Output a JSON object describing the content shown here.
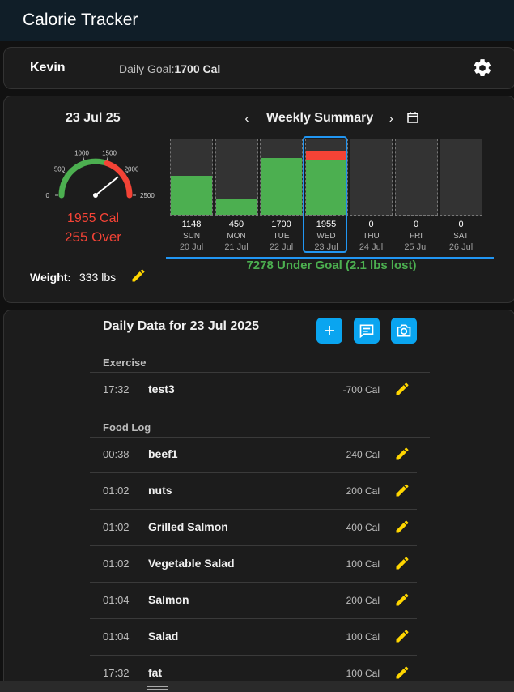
{
  "app": {
    "title": "Calorie Tracker"
  },
  "user": {
    "name": "Kevin",
    "goal_label": "Daily Goal:",
    "goal_value": "1700 Cal"
  },
  "summary": {
    "date": "23 Jul 25",
    "gauge": {
      "ticks": [
        "0",
        "500",
        "1000",
        "1500",
        "2000",
        "2500"
      ],
      "value": 1955,
      "max": 2500
    },
    "calories": "1955 Cal",
    "over": "255 Over",
    "weight_label": "Weight:",
    "weight_value": "333 lbs"
  },
  "week": {
    "title": "Weekly Summary",
    "prev": "‹",
    "next": "›",
    "goal": 1700,
    "days": [
      {
        "value": "1148",
        "name": "SUN",
        "date": "20 Jul",
        "cal": 1148
      },
      {
        "value": "450",
        "name": "MON",
        "date": "21 Jul",
        "cal": 450
      },
      {
        "value": "1700",
        "name": "TUE",
        "date": "22 Jul",
        "cal": 1700
      },
      {
        "value": "1955",
        "name": "WED",
        "date": "23 Jul",
        "cal": 1955,
        "selected": true
      },
      {
        "value": "0",
        "name": "THU",
        "date": "24 Jul",
        "cal": 0
      },
      {
        "value": "0",
        "name": "FRI",
        "date": "25 Jul",
        "cal": 0
      },
      {
        "value": "0",
        "name": "SAT",
        "date": "26 Jul",
        "cal": 0
      }
    ],
    "under_goal": "7278 Under Goal (2.1 lbs lost)"
  },
  "daily": {
    "title": "Daily Data for 23 Jul 2025",
    "exercise_label": "Exercise",
    "exercise": [
      {
        "time": "17:32",
        "name": "test3",
        "cal": "-700 Cal"
      }
    ],
    "food_label": "Food Log",
    "food": [
      {
        "time": "00:38",
        "name": "beef1",
        "cal": "240 Cal"
      },
      {
        "time": "01:02",
        "name": "nuts",
        "cal": "200 Cal"
      },
      {
        "time": "01:02",
        "name": "Grilled Salmon",
        "cal": "400 Cal"
      },
      {
        "time": "01:02",
        "name": "Vegetable Salad",
        "cal": "100 Cal"
      },
      {
        "time": "01:04",
        "name": "Salmon",
        "cal": "200 Cal"
      },
      {
        "time": "01:04",
        "name": "Salad",
        "cal": "100 Cal"
      },
      {
        "time": "17:32",
        "name": "fat",
        "cal": "100 Cal"
      }
    ]
  },
  "colors": {
    "accent": "#0aa5f0",
    "good": "#4caf50",
    "bad": "#f44336",
    "goal_line": "#2196f3"
  }
}
